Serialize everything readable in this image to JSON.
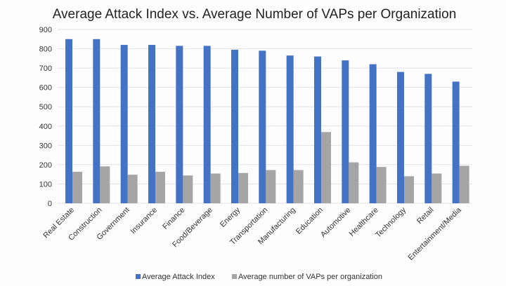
{
  "chart_data": {
    "type": "bar",
    "title": "Average Attack Index vs. Average Number of VAPs per Organization",
    "xlabel": "",
    "ylabel": "",
    "ylim": [
      0,
      900
    ],
    "yticks": [
      0,
      100,
      200,
      300,
      400,
      500,
      600,
      700,
      800,
      900
    ],
    "grid": true,
    "legend_position": "bottom",
    "categories": [
      "Real Estate",
      "Construction",
      "Government",
      "Insurance",
      "Finance",
      "Food/Beverage",
      "Energy",
      "Transportation",
      "Manufacturing",
      "Education",
      "Automotive",
      "Healthcare",
      "Technology",
      "Retail",
      "Entertainment/Media"
    ],
    "series": [
      {
        "name": "Average Attack Index",
        "color": "#4472c4",
        "values": [
          850,
          850,
          820,
          820,
          815,
          815,
          795,
          790,
          765,
          760,
          740,
          720,
          680,
          670,
          630
        ]
      },
      {
        "name": "Average number of VAPs per organization",
        "color": "#a5a5a5",
        "values": [
          163,
          191,
          148,
          163,
          144,
          154,
          157,
          172,
          172,
          369,
          212,
          188,
          140,
          154,
          194
        ]
      }
    ]
  }
}
